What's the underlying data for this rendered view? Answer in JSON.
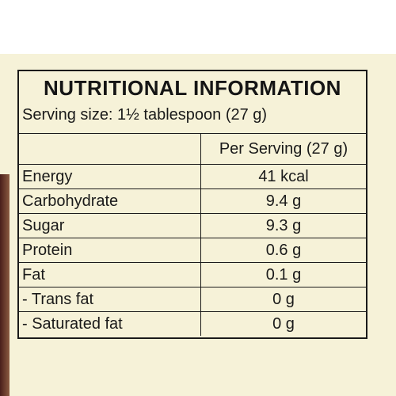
{
  "header": {
    "title": "NUTRITIONAL INFORMATION",
    "serving": "Serving size: 1½ tablespoon (27 g)"
  },
  "table": {
    "column_header": "Per Serving (27 g)",
    "rows": [
      [
        "Energy",
        "41 kcal"
      ],
      [
        "Carbohydrate",
        "9.4 g"
      ],
      [
        "Sugar",
        "9.3 g"
      ],
      [
        "Protein",
        "0.6 g"
      ],
      [
        "Fat",
        "0.1 g"
      ],
      [
        "- Trans fat",
        "0 g"
      ],
      [
        "- Saturated fat",
        "0 g"
      ]
    ]
  }
}
